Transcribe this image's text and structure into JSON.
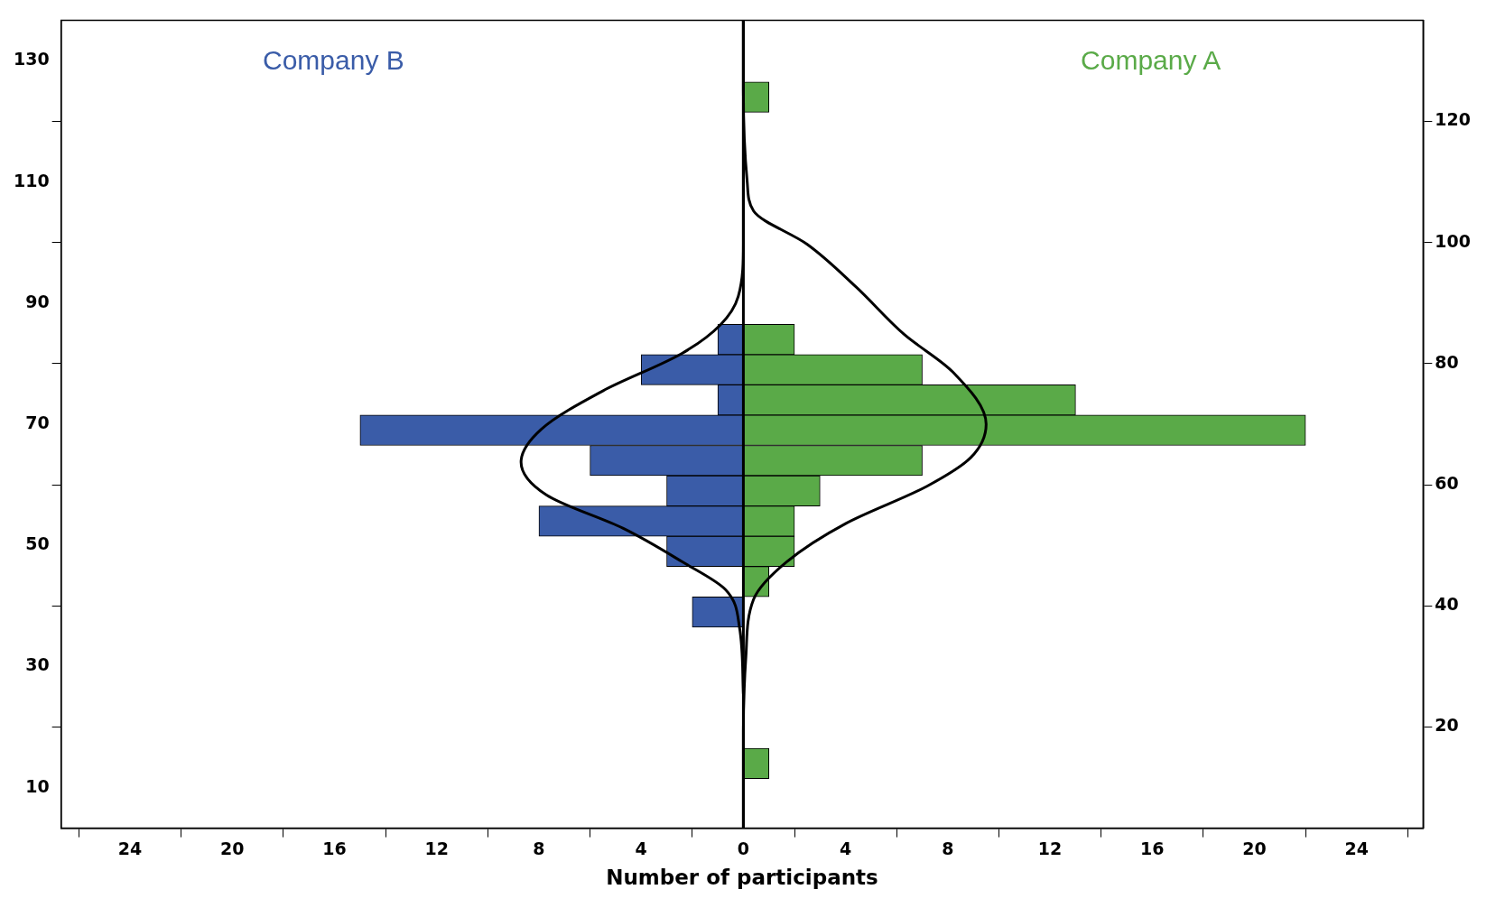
{
  "chart_data": {
    "type": "histogram",
    "orientation": "horizontal",
    "xlabel": "Number of participants",
    "bins": [
      11.5,
      16.5,
      21.5,
      26.5,
      31.5,
      36.5,
      41.5,
      46.5,
      51.5,
      56.5,
      61.5,
      66.5,
      71.5,
      76.5,
      81.5,
      86.5,
      91.5,
      96.5,
      101.5,
      106.5,
      111.5,
      116.5,
      121.5,
      126.5
    ],
    "series": [
      {
        "name": "Company B",
        "color": "#3a5ca8",
        "values": [
          0,
          0,
          0,
          0,
          0,
          -2,
          0,
          -3,
          -8,
          -3,
          -6,
          -15,
          -1,
          -4,
          -1,
          0,
          0,
          0,
          0,
          0,
          0,
          0,
          0
        ]
      },
      {
        "name": "Company A",
        "color": "#5aaa48",
        "values": [
          1,
          0,
          0,
          0,
          0,
          0,
          1,
          2,
          2,
          3,
          7,
          22,
          13,
          7,
          2,
          0,
          0,
          0,
          0,
          0,
          0,
          0,
          1
        ]
      },
      {
        "type": "line",
        "color": "#000000",
        "x": [
          25.5,
          36.4,
          42.7,
          47.3,
          52.8,
          58.3,
          63.75,
          69.2,
          75.5,
          81.7,
          86.4,
          91.1,
          100,
          136.7
        ],
        "values": [
          0,
          -0.15,
          -0.7,
          -2.4,
          -4.7,
          -7.7,
          -8.7,
          -7.9,
          -5.5,
          -2.4,
          -0.9,
          -0.2,
          0,
          0
        ]
      },
      {
        "type": "line",
        "color": "#000000",
        "x": [
          3.3,
          19.2,
          31.7,
          41.1,
          47.3,
          53.6,
          59.8,
          64.5,
          70,
          78.6,
          84.8,
          92.7,
          99.7,
          105.2,
          110,
          125,
          136.7
        ],
        "values": [
          0,
          0,
          0.1,
          0.4,
          1.7,
          4.0,
          7.2,
          8.9,
          9.5,
          8.2,
          6.3,
          4.4,
          2.5,
          0.4,
          0.15,
          0,
          0
        ]
      }
    ],
    "xlim": [
      -26.7,
      26.6
    ],
    "xticks": [
      {
        "value": -24,
        "label": "24"
      },
      {
        "value": -20,
        "label": "20"
      },
      {
        "value": -16,
        "label": "16"
      },
      {
        "value": -12,
        "label": "12"
      },
      {
        "value": -8,
        "label": "8"
      },
      {
        "value": -4,
        "label": "4"
      },
      0,
      4,
      8,
      12,
      16,
      20,
      24
    ],
    "ylim": [
      3.3,
      136.7
    ],
    "yticks": [
      10,
      30,
      50,
      70,
      90,
      110,
      130
    ],
    "y2lim": [
      3.3,
      136.7
    ],
    "y2ticks": [
      20,
      40,
      60,
      80,
      100,
      120
    ],
    "ref_lines": [
      {
        "axis": "x",
        "value": 0,
        "color": "#000000"
      }
    ],
    "grid": false,
    "legend": false
  }
}
